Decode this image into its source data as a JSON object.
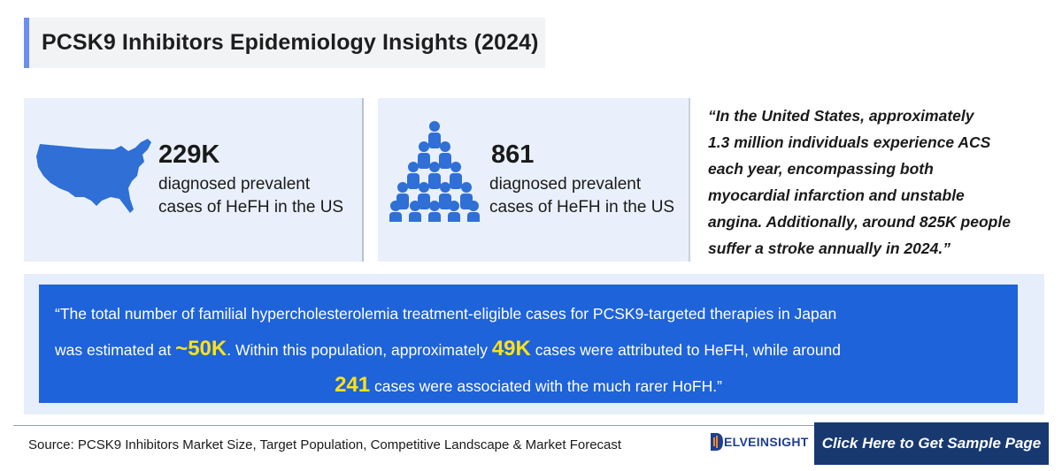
{
  "title": "PCSK9 Inhibitors Epidemiology Insights (2024)",
  "stats": [
    {
      "number": "229K",
      "desc_line1": "diagnosed prevalent",
      "desc_line2": "cases of HeFH in the US",
      "icon": "us-map-icon"
    },
    {
      "number": "861",
      "desc_line1": "diagnosed prevalent",
      "desc_line2": "cases of HeFH in the US",
      "icon": "people-group-icon"
    }
  ],
  "quote": {
    "lines": [
      "“In the United States, approximately",
      "1.3 million individuals experience ACS",
      "each year, encompassing both",
      "myocardial infarction and unstable",
      "angina. Additionally, around 825K people",
      "suffer a stroke annually in 2024.”"
    ]
  },
  "japan_box": {
    "line1": "“The total number of familial hypercholesterolemia treatment-eligible cases for PCSK9-targeted therapies in Japan",
    "line2_a": "was estimated at ",
    "line2_hl1": "~50K",
    "line2_b": ". Within this population, approximately ",
    "line2_hl2": "49K",
    "line2_c": " cases were attributed to HeFH, while around",
    "line3_hl": "241",
    "line3_a": " cases were associated with the much rarer HoFH.”"
  },
  "footer": {
    "source": "Source: PCSK9 Inhibitors Market Size, Target Population, Competitive Landscape & Market Forecast",
    "logo_text": "ELVEINSIGHT",
    "cta": "Click Here to Get Sample Page"
  },
  "colors": {
    "accent_bar": "#6b8ff0",
    "card_bg": "#e9f0fb",
    "icon_blue": "#2f6fd6",
    "box_blue": "#1e63d9",
    "highlight": "#ffe01a",
    "cta_bg": "#17396f"
  }
}
